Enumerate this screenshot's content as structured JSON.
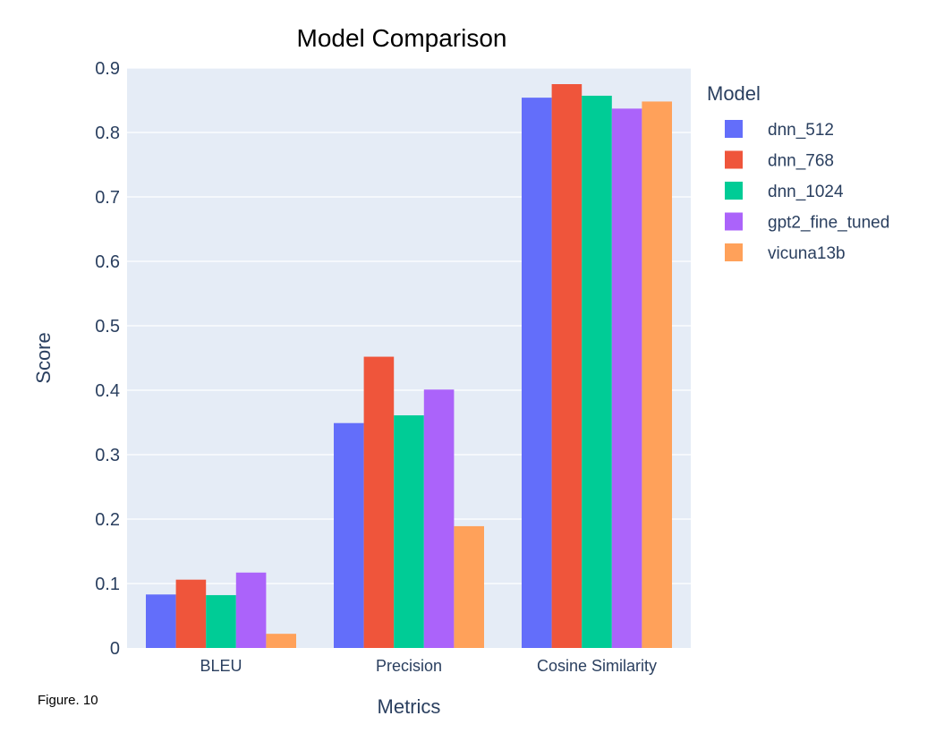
{
  "caption": "Figure. 10",
  "chart_data": {
    "type": "bar",
    "title": "Model Comparison",
    "xlabel": "Metrics",
    "ylabel": "Score",
    "categories": [
      "BLEU",
      "Precision",
      "Cosine Similarity"
    ],
    "ylim": [
      0,
      0.9
    ],
    "yticks": [
      0,
      0.1,
      0.2,
      0.3,
      0.4,
      0.5,
      0.6,
      0.7,
      0.8,
      0.9
    ],
    "ytick_labels": [
      "0",
      "0.1",
      "0.2",
      "0.3",
      "0.4",
      "0.5",
      "0.6",
      "0.7",
      "0.8",
      "0.9"
    ],
    "grid": true,
    "legend_title": "Model",
    "legend_position": "top-right, outside plot",
    "series": [
      {
        "name": "dnn_512",
        "color": "#636EFA",
        "values": [
          0.083,
          0.349,
          0.854
        ]
      },
      {
        "name": "dnn_768",
        "color": "#EF553B",
        "values": [
          0.106,
          0.452,
          0.875
        ]
      },
      {
        "name": "dnn_1024",
        "color": "#00CC96",
        "values": [
          0.082,
          0.361,
          0.857
        ]
      },
      {
        "name": "gpt2_fine_tuned",
        "color": "#AB63FA",
        "values": [
          0.117,
          0.401,
          0.837
        ]
      },
      {
        "name": "vicuna13b",
        "color": "#FFA15A",
        "values": [
          0.022,
          0.189,
          0.848
        ]
      }
    ],
    "colors": {
      "plot_background": "#E5ECF6",
      "gridline": "#FFFFFF",
      "axis_text": "#2A3F5F"
    }
  }
}
